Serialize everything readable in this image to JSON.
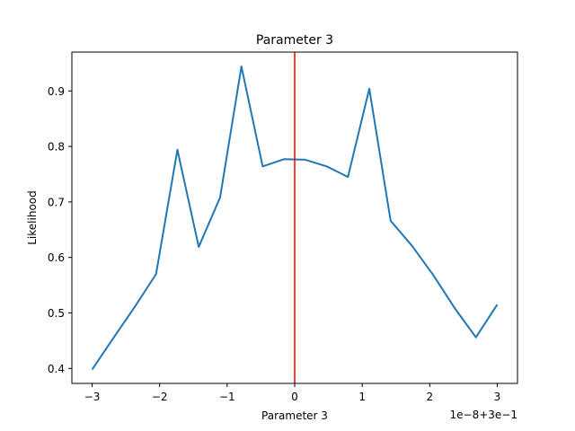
{
  "chart_data": {
    "type": "line",
    "title": "Parameter 3",
    "xlabel": "Parameter 3",
    "ylabel": "Likelihood",
    "x_offset_label": "1e−8+3e−1",
    "xlim": [
      -3.3,
      3.3
    ],
    "ylim": [
      0.373,
      0.97
    ],
    "xticks": [
      -3,
      -2,
      -1,
      0,
      1,
      2,
      3
    ],
    "xtick_labels": [
      "−3",
      "−2",
      "−1",
      "0",
      "1",
      "2",
      "3"
    ],
    "yticks": [
      0.4,
      0.5,
      0.6,
      0.7,
      0.8,
      0.9
    ],
    "ytick_labels": [
      "0.4",
      "0.5",
      "0.6",
      "0.7",
      "0.8",
      "0.9"
    ],
    "grid": false,
    "series": [
      {
        "color": "#1f77b4",
        "x": [
          -3.0,
          -2.684,
          -2.368,
          -2.053,
          -1.737,
          -1.421,
          -1.105,
          -0.789,
          -0.474,
          -0.158,
          0.158,
          0.474,
          0.789,
          1.105,
          1.421,
          1.737,
          2.053,
          2.368,
          2.684,
          3.0
        ],
        "y": [
          0.398,
          0.455,
          0.511,
          0.57,
          0.794,
          0.619,
          0.708,
          0.944,
          0.764,
          0.777,
          0.776,
          0.764,
          0.745,
          0.904,
          0.666,
          0.621,
          0.568,
          0.509,
          0.456,
          0.515
        ]
      }
    ],
    "vlines": [
      {
        "x": 0,
        "color": "#ff0000"
      }
    ]
  }
}
